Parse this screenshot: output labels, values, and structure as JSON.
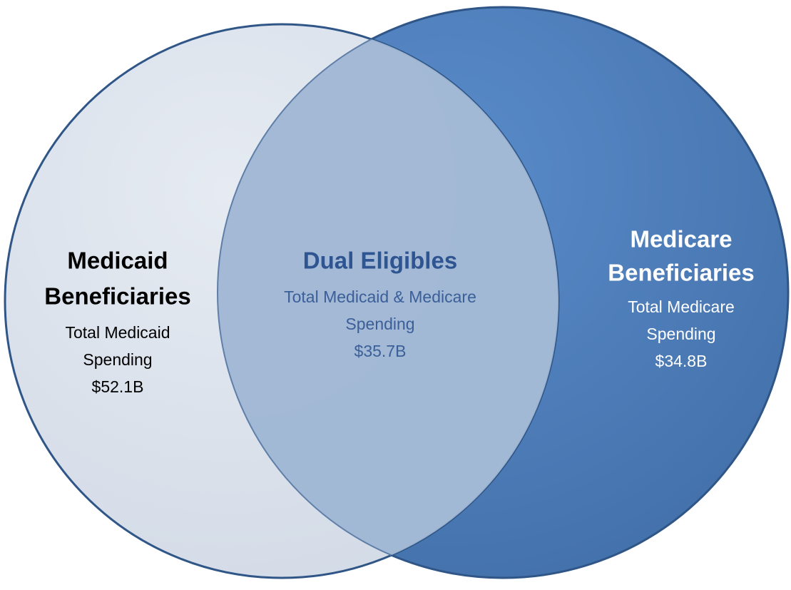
{
  "sets": [
    {
      "title_lines": [
        "Medicaid",
        "Beneficiaries"
      ],
      "detail_lines": [
        "Total Medicaid",
        "Spending"
      ],
      "amount": "$52.1B"
    },
    {
      "title_lines": [
        "Dual Eligibles"
      ],
      "detail_lines": [
        "Total Medicaid & Medicare",
        "Spending"
      ],
      "amount": "$35.7B"
    },
    {
      "title_lines": [
        "Medicare",
        "Beneficiaries"
      ],
      "detail_lines": [
        "Total Medicare",
        "Spending"
      ],
      "amount": "$34.8B"
    }
  ]
}
